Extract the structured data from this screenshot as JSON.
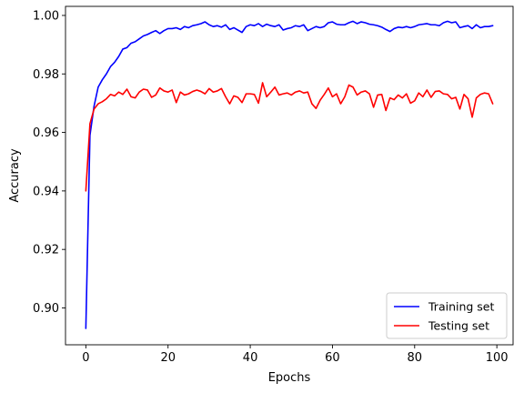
{
  "chart_data": {
    "type": "line",
    "xlabel": "Epochs",
    "ylabel": "Accuracy",
    "xlim": [
      -4.95,
      103.95
    ],
    "ylim": [
      0.8874,
      1.0031
    ],
    "xticks": [
      0,
      20,
      40,
      60,
      80,
      100
    ],
    "yticks": [
      0.9,
      0.92,
      0.94,
      0.96,
      0.98,
      1.0
    ],
    "xtick_labels": [
      "0",
      "20",
      "40",
      "60",
      "80",
      "100"
    ],
    "ytick_labels": [
      "0.90",
      "0.92",
      "0.94",
      "0.96",
      "0.98",
      "1.00"
    ],
    "grid": false,
    "legend_position": "lower-right",
    "series": [
      {
        "name": "Training set",
        "color": "#0000ff",
        "x": [
          0,
          1,
          2,
          3,
          4,
          5,
          6,
          7,
          8,
          9,
          10,
          11,
          12,
          13,
          14,
          15,
          16,
          17,
          18,
          19,
          20,
          21,
          22,
          23,
          24,
          25,
          26,
          27,
          28,
          29,
          30,
          31,
          32,
          33,
          34,
          35,
          36,
          37,
          38,
          39,
          40,
          41,
          42,
          43,
          44,
          45,
          46,
          47,
          48,
          49,
          50,
          51,
          52,
          53,
          54,
          55,
          56,
          57,
          58,
          59,
          60,
          61,
          62,
          63,
          64,
          65,
          66,
          67,
          68,
          69,
          70,
          71,
          72,
          73,
          74,
          75,
          76,
          77,
          78,
          79,
          80,
          81,
          82,
          83,
          84,
          85,
          86,
          87,
          88,
          89,
          90,
          91,
          92,
          93,
          94,
          95,
          96,
          97,
          98,
          99
        ],
        "y": [
          0.893,
          0.959,
          0.969,
          0.9755,
          0.978,
          0.98,
          0.9825,
          0.984,
          0.986,
          0.9885,
          0.989,
          0.9905,
          0.991,
          0.992,
          0.993,
          0.9935,
          0.9942,
          0.9948,
          0.9938,
          0.9948,
          0.9955,
          0.9955,
          0.9958,
          0.9952,
          0.9962,
          0.9958,
          0.9965,
          0.9968,
          0.9972,
          0.9978,
          0.9968,
          0.9962,
          0.9965,
          0.996,
          0.9968,
          0.9952,
          0.9958,
          0.995,
          0.9942,
          0.9962,
          0.9968,
          0.9965,
          0.9972,
          0.9962,
          0.997,
          0.9965,
          0.9962,
          0.9968,
          0.995,
          0.9955,
          0.9958,
          0.9965,
          0.9962,
          0.9968,
          0.9948,
          0.9955,
          0.9962,
          0.9958,
          0.9962,
          0.9975,
          0.9978,
          0.997,
          0.9968,
          0.9968,
          0.9975,
          0.998,
          0.9972,
          0.9978,
          0.9975,
          0.997,
          0.9968,
          0.9965,
          0.996,
          0.9952,
          0.9945,
          0.9955,
          0.996,
          0.9958,
          0.9962,
          0.9958,
          0.9962,
          0.9968,
          0.997,
          0.9972,
          0.9968,
          0.9968,
          0.9965,
          0.9975,
          0.998,
          0.9975,
          0.9978,
          0.9958,
          0.9962,
          0.9965,
          0.9955,
          0.9968,
          0.9958,
          0.9962,
          0.9962,
          0.9965
        ]
      },
      {
        "name": "Testing set",
        "color": "#ff0000",
        "x": [
          0,
          1,
          2,
          3,
          4,
          5,
          6,
          7,
          8,
          9,
          10,
          11,
          12,
          13,
          14,
          15,
          16,
          17,
          18,
          19,
          20,
          21,
          22,
          23,
          24,
          25,
          26,
          27,
          28,
          29,
          30,
          31,
          32,
          33,
          34,
          35,
          36,
          37,
          38,
          39,
          40,
          41,
          42,
          43,
          44,
          45,
          46,
          47,
          48,
          49,
          50,
          51,
          52,
          53,
          54,
          55,
          56,
          57,
          58,
          59,
          60,
          61,
          62,
          63,
          64,
          65,
          66,
          67,
          68,
          69,
          70,
          71,
          72,
          73,
          74,
          75,
          76,
          77,
          78,
          79,
          80,
          81,
          82,
          83,
          84,
          85,
          86,
          87,
          88,
          89,
          90,
          91,
          92,
          93,
          94,
          95,
          96,
          97,
          98,
          99
        ],
        "y": [
          0.94,
          0.963,
          0.968,
          0.9698,
          0.9705,
          0.9715,
          0.973,
          0.9725,
          0.9738,
          0.973,
          0.9748,
          0.9722,
          0.9718,
          0.9738,
          0.9748,
          0.9745,
          0.972,
          0.9728,
          0.9752,
          0.9742,
          0.9738,
          0.9745,
          0.9702,
          0.9738,
          0.9728,
          0.9732,
          0.974,
          0.9745,
          0.974,
          0.9732,
          0.975,
          0.9738,
          0.9742,
          0.975,
          0.9722,
          0.9698,
          0.9725,
          0.972,
          0.9702,
          0.9732,
          0.9732,
          0.973,
          0.97,
          0.977,
          0.9722,
          0.9738,
          0.9755,
          0.9728,
          0.9732,
          0.9735,
          0.9728,
          0.9738,
          0.9742,
          0.9735,
          0.9738,
          0.9698,
          0.9682,
          0.971,
          0.973,
          0.9752,
          0.9722,
          0.9732,
          0.9698,
          0.9722,
          0.9762,
          0.9755,
          0.9728,
          0.9738,
          0.9742,
          0.9732,
          0.9686,
          0.9728,
          0.973,
          0.9675,
          0.9718,
          0.9712,
          0.9728,
          0.9718,
          0.9732,
          0.97,
          0.9708,
          0.9735,
          0.9722,
          0.9745,
          0.972,
          0.974,
          0.9742,
          0.9732,
          0.973,
          0.9715,
          0.972,
          0.968,
          0.973,
          0.9715,
          0.9652,
          0.9718,
          0.973,
          0.9735,
          0.9732,
          0.9698
        ]
      }
    ]
  }
}
